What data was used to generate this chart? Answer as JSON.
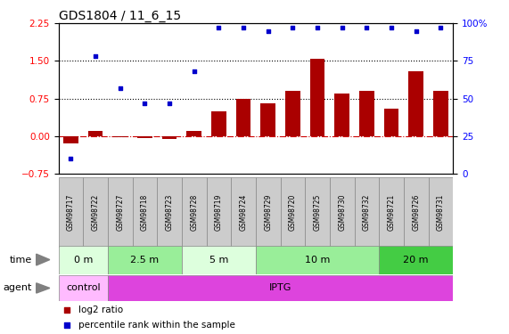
{
  "title": "GDS1804 / 11_6_15",
  "samples": [
    "GSM98717",
    "GSM98722",
    "GSM98727",
    "GSM98718",
    "GSM98723",
    "GSM98728",
    "GSM98719",
    "GSM98724",
    "GSM98729",
    "GSM98720",
    "GSM98725",
    "GSM98730",
    "GSM98732",
    "GSM98721",
    "GSM98726",
    "GSM98731"
  ],
  "log2_ratio": [
    -0.15,
    0.1,
    -0.02,
    -0.03,
    -0.05,
    0.1,
    0.5,
    0.75,
    0.65,
    0.9,
    1.55,
    0.85,
    0.9,
    0.55,
    1.3,
    0.9
  ],
  "pct_rank": [
    10,
    78,
    57,
    47,
    47,
    68,
    97,
    97,
    95,
    97,
    97,
    97,
    97,
    97,
    95,
    97
  ],
  "ylim_left": [
    -0.75,
    2.25
  ],
  "ylim_right": [
    0,
    100
  ],
  "yticks_left": [
    -0.75,
    0.0,
    0.75,
    1.5,
    2.25
  ],
  "yticks_right": [
    0,
    25,
    50,
    75,
    100
  ],
  "hlines": [
    0.75,
    1.5
  ],
  "bar_color": "#aa0000",
  "dot_color": "#0000cc",
  "time_groups": [
    {
      "label": "0 m",
      "start": 0,
      "end": 2,
      "color": "#ddffdd"
    },
    {
      "label": "2.5 m",
      "start": 2,
      "end": 5,
      "color": "#99ee99"
    },
    {
      "label": "5 m",
      "start": 5,
      "end": 8,
      "color": "#ddffdd"
    },
    {
      "label": "10 m",
      "start": 8,
      "end": 13,
      "color": "#99ee99"
    },
    {
      "label": "20 m",
      "start": 13,
      "end": 16,
      "color": "#44cc44"
    }
  ],
  "agent_groups": [
    {
      "label": "control",
      "start": 0,
      "end": 2,
      "color": "#ffbbff"
    },
    {
      "label": "IPTG",
      "start": 2,
      "end": 16,
      "color": "#dd44dd"
    }
  ],
  "legend_bar": "log2 ratio",
  "legend_dot": "percentile rank within the sample"
}
